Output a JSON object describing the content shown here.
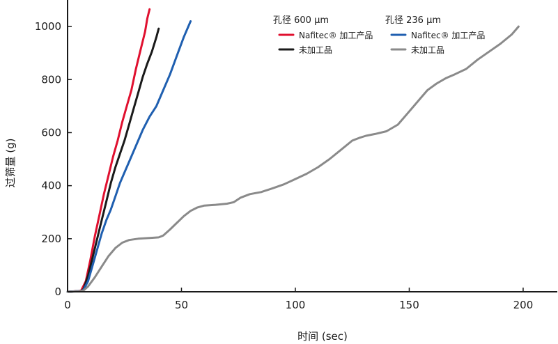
{
  "chart_data": {
    "type": "line",
    "xlabel": "时间 (sec)",
    "ylabel": "过筛量 (g)",
    "xlim": [
      0,
      215
    ],
    "ylim": [
      0,
      1100
    ],
    "x_ticks": [
      "0",
      "50",
      "100",
      "150",
      "200"
    ],
    "y_ticks": [
      "0",
      "200",
      "400",
      "600",
      "800",
      "1000"
    ],
    "legend": {
      "placement": "top-right",
      "groups": [
        {
          "title": "孔径 600 µm",
          "entries": [
            0,
            1
          ]
        },
        {
          "title": "孔径 236 µm",
          "entries": [
            2,
            3
          ]
        }
      ]
    },
    "series": [
      {
        "name": "Nafitec® 加工产品",
        "color": "#e0102f",
        "points": [
          [
            0,
            0
          ],
          [
            5,
            3
          ],
          [
            6,
            5
          ],
          [
            8,
            40
          ],
          [
            10,
            120
          ],
          [
            12,
            210
          ],
          [
            14,
            290
          ],
          [
            16,
            370
          ],
          [
            18,
            440
          ],
          [
            20,
            510
          ],
          [
            22,
            570
          ],
          [
            24,
            640
          ],
          [
            26,
            700
          ],
          [
            28,
            760
          ],
          [
            30,
            840
          ],
          [
            32,
            910
          ],
          [
            34,
            980
          ],
          [
            35,
            1030
          ],
          [
            36,
            1065
          ]
        ]
      },
      {
        "name": "未加工品",
        "color": "#1a1a1a",
        "points": [
          [
            0,
            0
          ],
          [
            6,
            3
          ],
          [
            7,
            10
          ],
          [
            9,
            60
          ],
          [
            11,
            130
          ],
          [
            13,
            200
          ],
          [
            15,
            270
          ],
          [
            17,
            340
          ],
          [
            19,
            410
          ],
          [
            21,
            470
          ],
          [
            23,
            520
          ],
          [
            25,
            570
          ],
          [
            27,
            630
          ],
          [
            29,
            690
          ],
          [
            31,
            750
          ],
          [
            33,
            810
          ],
          [
            35,
            860
          ],
          [
            37,
            905
          ],
          [
            39,
            960
          ],
          [
            40,
            992
          ]
        ]
      },
      {
        "name": "Nafitec® 加工产品",
        "color": "#1f5fb0",
        "points": [
          [
            0,
            0
          ],
          [
            6,
            3
          ],
          [
            7,
            8
          ],
          [
            9,
            40
          ],
          [
            11,
            100
          ],
          [
            13,
            160
          ],
          [
            15,
            220
          ],
          [
            17,
            270
          ],
          [
            19,
            310
          ],
          [
            21,
            360
          ],
          [
            23,
            410
          ],
          [
            25,
            450
          ],
          [
            27,
            490
          ],
          [
            30,
            550
          ],
          [
            33,
            610
          ],
          [
            36,
            660
          ],
          [
            39,
            700
          ],
          [
            42,
            760
          ],
          [
            45,
            820
          ],
          [
            48,
            890
          ],
          [
            51,
            960
          ],
          [
            54,
            1020
          ]
        ]
      },
      {
        "name": "未加工品",
        "color": "#8a8a8a",
        "points": [
          [
            0,
            0
          ],
          [
            5,
            2
          ],
          [
            7,
            5
          ],
          [
            9,
            20
          ],
          [
            12,
            55
          ],
          [
            15,
            95
          ],
          [
            18,
            135
          ],
          [
            21,
            165
          ],
          [
            24,
            185
          ],
          [
            27,
            195
          ],
          [
            31,
            200
          ],
          [
            36,
            203
          ],
          [
            40,
            205
          ],
          [
            42,
            212
          ],
          [
            45,
            235
          ],
          [
            48,
            260
          ],
          [
            51,
            285
          ],
          [
            54,
            305
          ],
          [
            57,
            318
          ],
          [
            60,
            325
          ],
          [
            65,
            328
          ],
          [
            70,
            332
          ],
          [
            73,
            338
          ],
          [
            76,
            355
          ],
          [
            80,
            368
          ],
          [
            85,
            376
          ],
          [
            90,
            390
          ],
          [
            95,
            405
          ],
          [
            100,
            425
          ],
          [
            105,
            445
          ],
          [
            110,
            470
          ],
          [
            115,
            500
          ],
          [
            120,
            535
          ],
          [
            125,
            570
          ],
          [
            128,
            580
          ],
          [
            131,
            588
          ],
          [
            135,
            595
          ],
          [
            140,
            605
          ],
          [
            145,
            630
          ],
          [
            147,
            650
          ],
          [
            149,
            670
          ],
          [
            152,
            700
          ],
          [
            155,
            730
          ],
          [
            158,
            760
          ],
          [
            162,
            785
          ],
          [
            166,
            805
          ],
          [
            170,
            820
          ],
          [
            175,
            840
          ],
          [
            180,
            875
          ],
          [
            185,
            905
          ],
          [
            190,
            935
          ],
          [
            195,
            970
          ],
          [
            198,
            1000
          ]
        ]
      }
    ]
  }
}
